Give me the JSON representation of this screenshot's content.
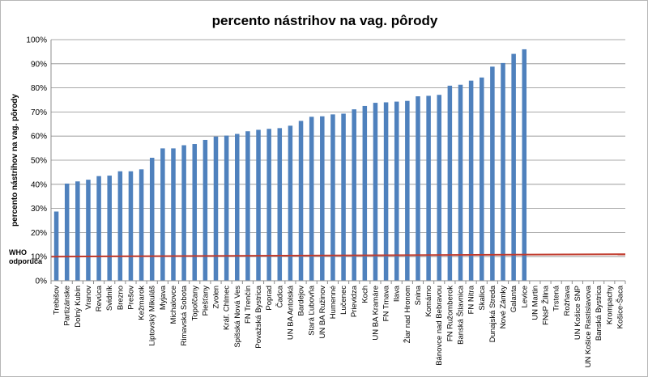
{
  "chart_data": {
    "type": "bar",
    "title": "percento nástrihov na vag. pôrody",
    "ylabel": "percento nástrihov na vag. pôrody",
    "xlabel": "",
    "ylim": [
      0,
      100
    ],
    "yticks": [
      "0%",
      "10%",
      "20%",
      "30%",
      "40%",
      "50%",
      "60%",
      "70%",
      "80%",
      "90%",
      "100%"
    ],
    "grid": true,
    "bar_color": "#4f81bd",
    "reference_line": {
      "label_lines": [
        "WHO",
        "odporúča"
      ],
      "start_value": 10,
      "end_value": 11,
      "color": "#c0392b"
    },
    "categories": [
      "Trebišov",
      "Partizánske",
      "Dolný Kubín",
      "Vranov",
      "Revúca",
      "Svidník",
      "Brezno",
      "Prešov",
      "Kežmarok",
      "Liptovský Mikuláš",
      "Myjava",
      "Michalovce",
      "Rimavská Sobota",
      "Topoľčany",
      "Piešťany",
      "Zvolen",
      "Kráľ. Chlmec",
      "Spišská Nová Ves",
      "FN Trenčín",
      "Považská Bystrica",
      "Poprad",
      "Čadca",
      "UN BA Antolská",
      "Bardejov",
      "Stará Ľubovňa",
      "UN BA Ružinov",
      "Humenné",
      "Lučenec",
      "Prievidza",
      "Koch",
      "UN BA Kramáre",
      "FN Trnava",
      "Ilava",
      "Žiar nad Hronom",
      "Snina",
      "Komárno",
      "Bánovce nad Bebravou",
      "FN Ružomberok",
      "Banská Štiavnica",
      "FN Nitra",
      "Skalica",
      "Dunajská Streda",
      "Nové Zámky",
      "Galanta",
      "Levice",
      "UN Martin",
      "FNsP Žilina",
      "Trstená",
      "Rožňava",
      "UN Košice SNP",
      "UN Košice Rastislavova",
      "Banská Bystrica",
      "Krompachy",
      "Košice-Šaca"
    ],
    "values": [
      28.7,
      40.3,
      41.2,
      41.9,
      43.4,
      43.6,
      45.4,
      45.4,
      46.2,
      51.0,
      54.9,
      54.9,
      56.2,
      56.7,
      58.4,
      59.8,
      60.2,
      60.9,
      62.0,
      62.6,
      63.0,
      63.3,
      64.3,
      66.3,
      68.0,
      68.2,
      69.0,
      69.3,
      71.1,
      72.5,
      73.8,
      74.0,
      74.3,
      74.6,
      76.5,
      76.7,
      77.1,
      80.9,
      81.3,
      83.0,
      84.3,
      88.8,
      90.3,
      94.1,
      96.0,
      null,
      null,
      null,
      null,
      null,
      null,
      null,
      null,
      null
    ]
  }
}
